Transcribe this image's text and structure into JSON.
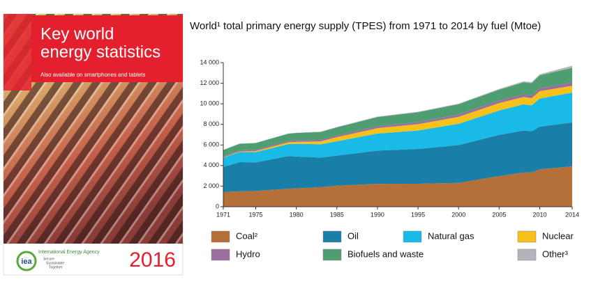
{
  "cover": {
    "title_lines": [
      "Key world",
      "energy statistics"
    ],
    "subtitle": "Also available on smartphones and tablets",
    "logo": "iea",
    "agency": "International Energy Agency",
    "motto": [
      "Secure",
      "Sustainable",
      "Together"
    ],
    "year": "2016"
  },
  "chart_data": {
    "type": "stacked-area",
    "title": "World¹ total primary energy supply (TPES) from 1971 to 2014 by fuel (Mtoe)",
    "x": [
      1971,
      1973,
      1975,
      1979,
      1980,
      1983,
      1985,
      1990,
      1995,
      2000,
      2005,
      2008,
      2009,
      2010,
      2014
    ],
    "series": [
      {
        "name": "Coal²",
        "color": "#b5703a",
        "values": [
          1440,
          1500,
          1530,
          1750,
          1780,
          1900,
          2050,
          2220,
          2230,
          2320,
          2980,
          3320,
          3330,
          3640,
          3920
        ]
      },
      {
        "name": "Oil",
        "color": "#1a7fa8",
        "values": [
          2430,
          2830,
          2780,
          3170,
          3100,
          2880,
          2920,
          3230,
          3380,
          3670,
          4000,
          4080,
          4000,
          4140,
          4270
        ]
      },
      {
        "name": "Natural gas",
        "color": "#19b9e8",
        "values": [
          890,
          990,
          1000,
          1160,
          1230,
          1290,
          1390,
          1660,
          1800,
          2070,
          2370,
          2550,
          2520,
          2730,
          2900
        ]
      },
      {
        "name": "Nuclear",
        "color": "#f6c11b",
        "values": [
          30,
          50,
          100,
          180,
          190,
          280,
          400,
          525,
          610,
          675,
          720,
          710,
          700,
          720,
          660
        ]
      },
      {
        "name": "Hydro",
        "color": "#9d6f9f",
        "values": [
          105,
          110,
          120,
          135,
          145,
          155,
          165,
          185,
          210,
          225,
          250,
          275,
          275,
          295,
          335
        ]
      },
      {
        "name": "Biofuels and waste",
        "color": "#4f9e72",
        "values": [
          620,
          640,
          660,
          700,
          720,
          760,
          790,
          900,
          950,
          1000,
          1050,
          1150,
          1180,
          1230,
          1420
        ]
      },
      {
        "name": "Other³",
        "color": "#b3b3bb",
        "values": [
          10,
          12,
          15,
          20,
          22,
          28,
          32,
          40,
          50,
          60,
          80,
          95,
          100,
          110,
          195
        ]
      }
    ],
    "xlim": [
      1971,
      2014
    ],
    "xticks": [
      1971,
      1975,
      1980,
      1985,
      1990,
      1995,
      2000,
      2005,
      2010,
      2014
    ],
    "ylim": [
      0,
      14000
    ],
    "yticks": [
      0,
      {
        "value": 2000,
        "label": "2 000"
      },
      {
        "value": 4000,
        "label": "4 000"
      },
      {
        "value": 6000,
        "label": "6 000"
      },
      {
        "value": 8000,
        "label": "8 000"
      },
      {
        "value": 10000,
        "label": "10 000"
      },
      {
        "value": 12000,
        "label": "12 000"
      },
      {
        "value": 14000,
        "label": "14 000"
      }
    ],
    "grid": false
  }
}
